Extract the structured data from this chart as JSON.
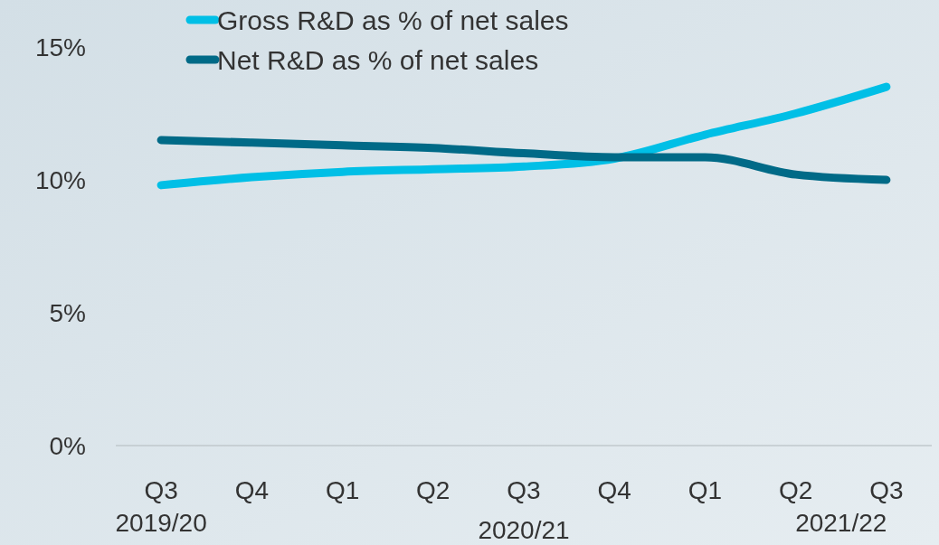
{
  "chart_data": {
    "type": "line",
    "categories": [
      "Q3",
      "Q4",
      "Q1",
      "Q2",
      "Q3",
      "Q4",
      "Q1",
      "Q2",
      "Q3"
    ],
    "series": [
      {
        "name": "Gross R&D as % of net sales",
        "color": "#00bfe6",
        "values": [
          9.8,
          10.1,
          10.3,
          10.4,
          10.5,
          10.8,
          11.7,
          12.5,
          13.5
        ]
      },
      {
        "name": "Net R&D as % of net sales",
        "color": "#006a87",
        "values": [
          11.5,
          11.4,
          11.3,
          11.2,
          11.0,
          10.85,
          10.85,
          10.2,
          10.0
        ]
      }
    ],
    "ylim": [
      0,
      15
    ],
    "yticks": [
      {
        "value": 0,
        "label": "0%"
      },
      {
        "value": 5,
        "label": "5%"
      },
      {
        "value": 10,
        "label": "10%"
      },
      {
        "value": 15,
        "label": "15%"
      }
    ],
    "annotations": [
      "2019/20",
      "2020/21",
      "2021/22"
    ],
    "legend": "top",
    "grid": false,
    "marker": "none",
    "line_style": "solid"
  }
}
